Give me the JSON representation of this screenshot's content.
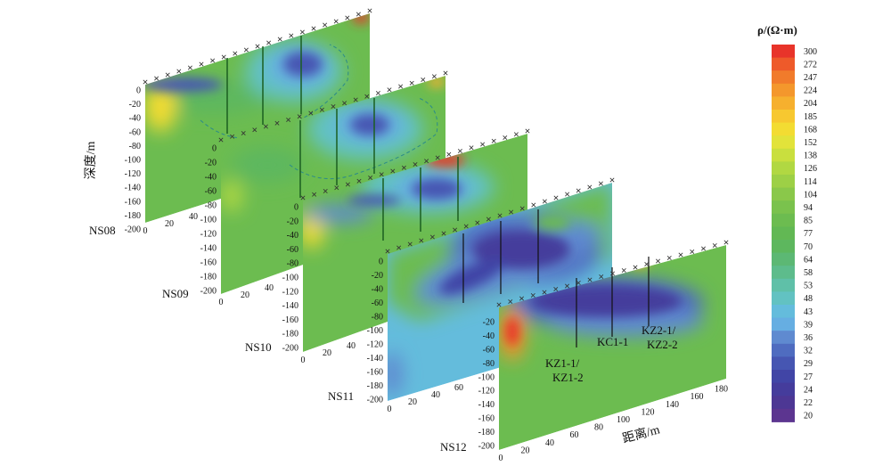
{
  "legend": {
    "title": "ρ/(Ω·m)",
    "values": [
      "300",
      "272",
      "247",
      "224",
      "204",
      "185",
      "168",
      "152",
      "138",
      "126",
      "114",
      "104",
      "94",
      "85",
      "77",
      "70",
      "64",
      "58",
      "53",
      "48",
      "43",
      "39",
      "36",
      "32",
      "29",
      "27",
      "24",
      "22",
      "20"
    ],
    "colors": [
      "#e8342a",
      "#ee5a2a",
      "#f17b2b",
      "#f4972c",
      "#f6b02e",
      "#f7c830",
      "#f3dc32",
      "#e2e33a",
      "#c9df3e",
      "#b1d842",
      "#9dd046",
      "#8ac84a",
      "#7ac24d",
      "#6cbc50",
      "#62b854",
      "#5db75e",
      "#5cb874",
      "#5dbc8c",
      "#5fc0a8",
      "#62c2c2",
      "#64bcdc",
      "#66aee2",
      "#5f8ad0",
      "#4f6cc0",
      "#4656b2",
      "#4145a6",
      "#453c9c",
      "#4d3794",
      "#5c3590"
    ]
  },
  "axes": {
    "depth_title": "深度/m",
    "distance_title": "距离/m",
    "depth_ticks": [
      "0",
      "-20",
      "-40",
      "-60",
      "-80",
      "-100",
      "-120",
      "-140",
      "-160",
      "-180",
      "-200"
    ],
    "panel12_depth_ticks": [
      "-20",
      "-40",
      "-60",
      "-80",
      "-100",
      "-120",
      "-140",
      "-160",
      "-180",
      "-200"
    ],
    "distance_ticks": [
      "0",
      "20",
      "40",
      "60",
      "80",
      "100",
      "120",
      "140",
      "160",
      "180"
    ]
  },
  "panels": [
    {
      "label": "NS08",
      "dist_ticks": [
        "0",
        "20",
        "40"
      ]
    },
    {
      "label": "NS09",
      "dist_ticks": [
        "0",
        "20",
        "40"
      ]
    },
    {
      "label": "NS10",
      "dist_ticks": [
        "0",
        "20",
        "40"
      ]
    },
    {
      "label": "NS11",
      "dist_ticks": [
        "0",
        "20",
        "40",
        "60"
      ]
    },
    {
      "label": "NS12",
      "dist_ticks": [
        "0",
        "20",
        "40",
        "60",
        "80",
        "100",
        "120",
        "140",
        "160",
        "180"
      ]
    }
  ],
  "boreholes": [
    {
      "line1": "KZ1-1/",
      "line2": "KZ1-2"
    },
    {
      "line1": "KC1-1",
      "line2": ""
    },
    {
      "line1": "KZ2-1/",
      "line2": "KZ2-2"
    }
  ]
}
